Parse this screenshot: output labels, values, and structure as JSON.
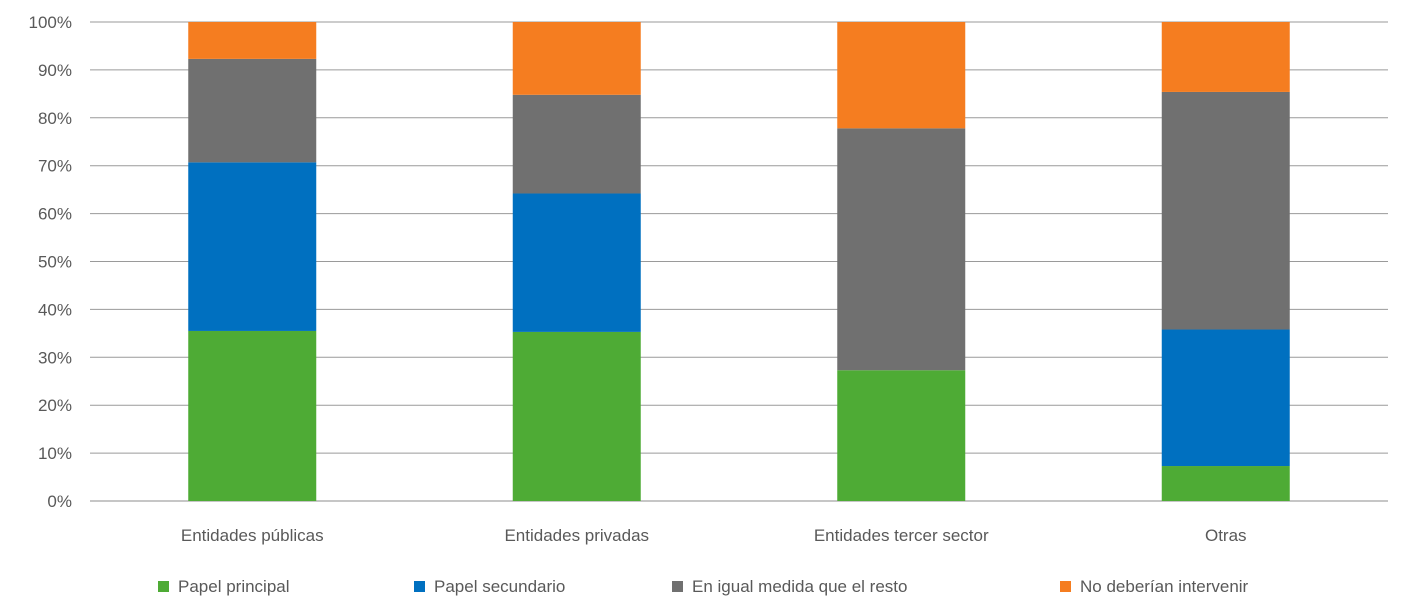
{
  "chart_data": {
    "type": "bar",
    "stacked": true,
    "percent": true,
    "title": "",
    "xlabel": "",
    "ylabel": "",
    "ylim": [
      0,
      100
    ],
    "yticks": [
      "0%",
      "10%",
      "20%",
      "30%",
      "40%",
      "50%",
      "60%",
      "70%",
      "80%",
      "90%",
      "100%"
    ],
    "grid": true,
    "legend_position": "bottom",
    "categories": [
      "Entidades públicas",
      "Entidades privadas",
      "Entidades tercer sector",
      "Otras"
    ],
    "series": [
      {
        "name": "Papel principal",
        "color": "#4EAB35",
        "values": [
          35.5,
          35.3,
          27.3,
          7.3
        ]
      },
      {
        "name": "Papel secundario",
        "color": "#0070C0",
        "values": [
          35.2,
          28.9,
          0,
          28.5
        ]
      },
      {
        "name": "En igual medida que el resto",
        "color": "#707070",
        "values": [
          21.6,
          20.6,
          50.5,
          49.6
        ]
      },
      {
        "name": "No deberían intervenir",
        "color": "#F57D20",
        "values": [
          7.7,
          15.2,
          22.2,
          14.6
        ]
      }
    ]
  }
}
